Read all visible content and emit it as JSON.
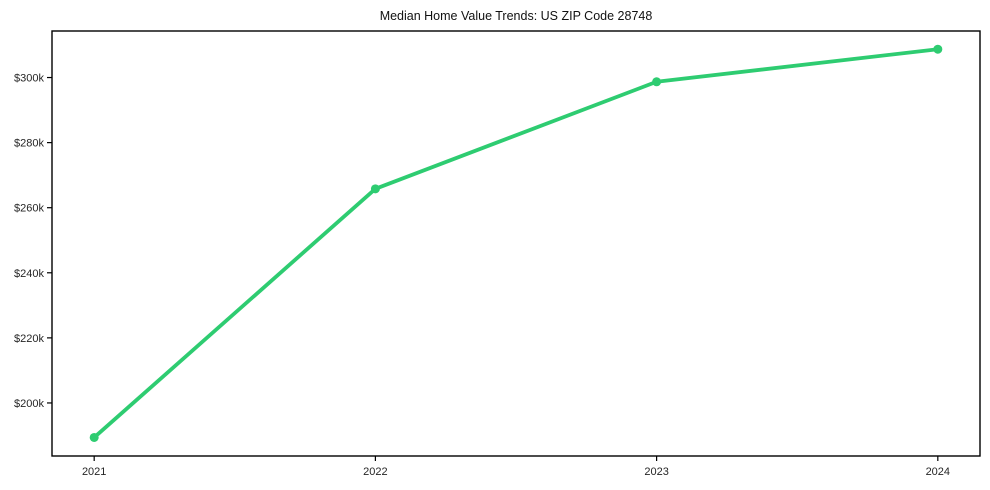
{
  "chart_data": {
    "type": "line",
    "title": "Median Home Value Trends: US ZIP Code 28748",
    "xlabel": "",
    "ylabel": "",
    "x": [
      2021,
      2022,
      2023,
      2024
    ],
    "categories": [
      "2021",
      "2022",
      "2023",
      "2024"
    ],
    "series": [
      {
        "name": "Median Home Value",
        "values": [
          189400,
          265800,
          298700,
          308700
        ],
        "color": "#2ecc71",
        "marker": "circle"
      }
    ],
    "xtick_labels": [
      "2021",
      "2022",
      "2023",
      "2024"
    ],
    "ytick_values": [
      200000,
      220000,
      240000,
      260000,
      280000,
      300000
    ],
    "ytick_labels": [
      "$200k",
      "$220k",
      "$240k",
      "$260k",
      "$280k",
      "$300k"
    ],
    "xlim": [
      2020.85,
      2024.15
    ],
    "ylim": [
      183700,
      314300
    ],
    "grid": false,
    "legend_position": "none",
    "colors": {
      "line": "#2ecc71",
      "marker": "#2ecc71",
      "spine": "#000000",
      "tick": "#000000",
      "text": "#111111",
      "background": "#ffffff"
    }
  }
}
